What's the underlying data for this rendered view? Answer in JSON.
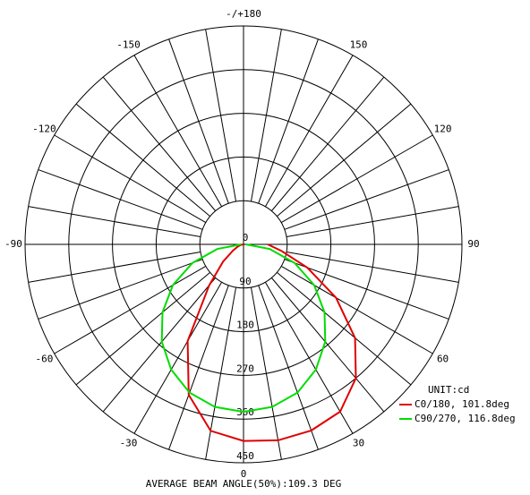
{
  "chart_data": {
    "type": "polar",
    "rlim": [
      0,
      450
    ],
    "rticks": [
      0,
      90,
      180,
      270,
      360,
      450
    ],
    "angle_ticks": [
      {
        "value": 180,
        "label": "-/+180"
      },
      150,
      120,
      90,
      60,
      30,
      0,
      -30,
      -60,
      -90,
      -120,
      -150
    ],
    "unit": "UNIT:cd",
    "x": [
      -90,
      -80,
      -70,
      -60,
      -50,
      -40,
      -30,
      -20,
      -10,
      0,
      10,
      20,
      30,
      40,
      50,
      60,
      70,
      80,
      90
    ],
    "series": [
      {
        "name": "C0/180, 101.8deg",
        "color": "#e00000",
        "values": [
          0,
          5,
          12,
          25,
          55,
          110,
          230,
          330,
          390,
          405,
          410,
          408,
          398,
          360,
          300,
          220,
          140,
          80,
          50
        ]
      },
      {
        "name": "C90/270, 116.8deg",
        "color": "#00dd00",
        "values": [
          5,
          55,
          112,
          168,
          218,
          262,
          298,
          325,
          340,
          345,
          340,
          325,
          298,
          262,
          218,
          168,
          112,
          55,
          5
        ]
      }
    ],
    "footer": "AVERAGE BEAM ANGLE(50%):109.3 DEG"
  }
}
